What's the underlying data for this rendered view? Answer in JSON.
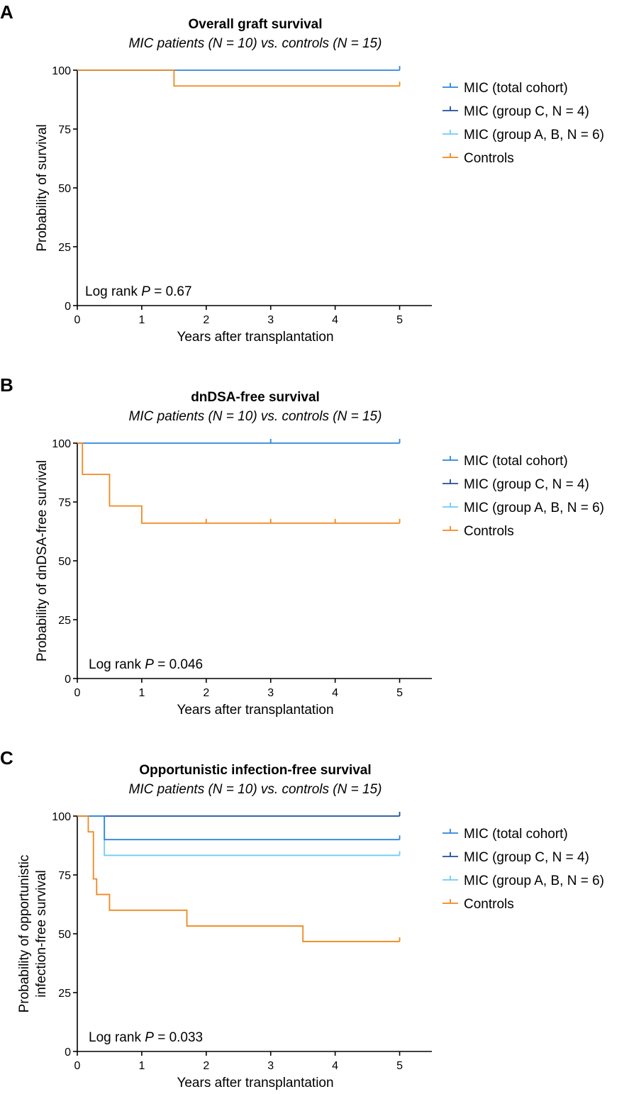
{
  "series_styles": [
    {
      "key": "total",
      "color": "#2f86d9"
    },
    {
      "key": "groupC",
      "color": "#1d4f9c"
    },
    {
      "key": "groupAB",
      "color": "#6ecdf3"
    },
    {
      "key": "controls",
      "color": "#f0891f"
    }
  ],
  "chart_data": [
    {
      "type": "line",
      "subtype": "kaplan-meier step",
      "panel_letter": "A",
      "title": "Overall graft survival",
      "subtitle": "MIC patients (N = 10) vs. controls (N = 15)",
      "xlabel": "Years after transplantation",
      "ylabel_lines": [
        "Probability of survival"
      ],
      "xlim": [
        0,
        5.5
      ],
      "ylim": [
        0,
        100
      ],
      "xticks": [
        0,
        1,
        2,
        3,
        4,
        5
      ],
      "yticks": [
        0,
        25,
        50,
        75,
        100
      ],
      "annotation_prefix": "Log rank ",
      "annotation_p": "P",
      "annotation_value": " = 0.67",
      "legend": [
        "MIC (total cohort)",
        "MIC (group C, N = 4)",
        "MIC (group A, B, N = 6)",
        "Controls"
      ],
      "series": [
        {
          "name": "MIC (total cohort)",
          "style": 0,
          "steps": [
            [
              0,
              100
            ],
            [
              5,
              100
            ]
          ],
          "censor": [
            5
          ]
        },
        {
          "name": "Controls",
          "style": 3,
          "steps": [
            [
              0,
              100
            ],
            [
              1.5,
              93.3
            ],
            [
              5,
              93.3
            ]
          ],
          "censor": [
            5
          ]
        }
      ]
    },
    {
      "type": "line",
      "subtype": "kaplan-meier step",
      "panel_letter": "B",
      "title": "dnDSA-free survival",
      "subtitle": "MIC patients (N = 10) vs. controls (N = 15)",
      "xlabel": "Years after transplantation",
      "ylabel_lines": [
        "Probability of dnDSA-free survival"
      ],
      "xlim": [
        0,
        5.5
      ],
      "ylim": [
        0,
        100
      ],
      "xticks": [
        0,
        1,
        2,
        3,
        4,
        5
      ],
      "yticks": [
        0,
        25,
        50,
        75,
        100
      ],
      "annotation_prefix": "Log rank ",
      "annotation_p": "P",
      "annotation_value": " = 0.046",
      "legend": [
        "MIC (total cohort)",
        "MIC (group C, N = 4)",
        "MIC (group A, B, N = 6)",
        "Controls"
      ],
      "series": [
        {
          "name": "MIC (total cohort)",
          "style": 0,
          "steps": [
            [
              0,
              100
            ],
            [
              5,
              100
            ]
          ],
          "censor": [
            3,
            5
          ]
        },
        {
          "name": "Controls",
          "style": 3,
          "steps": [
            [
              0,
              100
            ],
            [
              0.08,
              86.7
            ],
            [
              0.5,
              73.3
            ],
            [
              1.0,
              66.0
            ],
            [
              5,
              66.0
            ]
          ],
          "censor": [
            2,
            3,
            4,
            5
          ]
        }
      ]
    },
    {
      "type": "line",
      "subtype": "kaplan-meier step",
      "panel_letter": "C",
      "title": "Opportunistic infection-free survival",
      "subtitle": "MIC patients (N = 10) vs. controls (N = 15)",
      "xlabel": "Years after transplantation",
      "ylabel_lines": [
        "Probability of opportunistic",
        "infection-free survival"
      ],
      "xlim": [
        0,
        5.5
      ],
      "ylim": [
        0,
        100
      ],
      "xticks": [
        0,
        1,
        2,
        3,
        4,
        5
      ],
      "yticks": [
        0,
        25,
        50,
        75,
        100
      ],
      "annotation_prefix": "Log rank ",
      "annotation_p": "P",
      "annotation_value": " = 0.033",
      "legend": [
        "MIC (total cohort)",
        "MIC (group C, N = 4)",
        "MIC (group A, B, N = 6)",
        "Controls"
      ],
      "series": [
        {
          "name": "MIC (group C, N = 4)",
          "style": 1,
          "steps": [
            [
              0,
              100
            ],
            [
              5,
              100
            ]
          ],
          "censor": [
            5
          ]
        },
        {
          "name": "MIC (group A, B, N = 6)",
          "style": 2,
          "steps": [
            [
              0,
              100
            ],
            [
              0.42,
              83.3
            ],
            [
              5,
              83.3
            ]
          ],
          "censor": [
            5
          ]
        },
        {
          "name": "MIC (total cohort)",
          "style": 0,
          "steps": [
            [
              0,
              100
            ],
            [
              0.42,
              90
            ],
            [
              5,
              90
            ]
          ],
          "censor": [
            5
          ]
        },
        {
          "name": "Controls",
          "style": 3,
          "steps": [
            [
              0,
              100
            ],
            [
              0.17,
              93.3
            ],
            [
              0.25,
              73.3
            ],
            [
              0.3,
              66.7
            ],
            [
              0.5,
              60
            ],
            [
              1.7,
              53.3
            ],
            [
              3.5,
              46.7
            ],
            [
              5,
              46.7
            ]
          ],
          "censor": [
            5
          ]
        }
      ]
    }
  ]
}
